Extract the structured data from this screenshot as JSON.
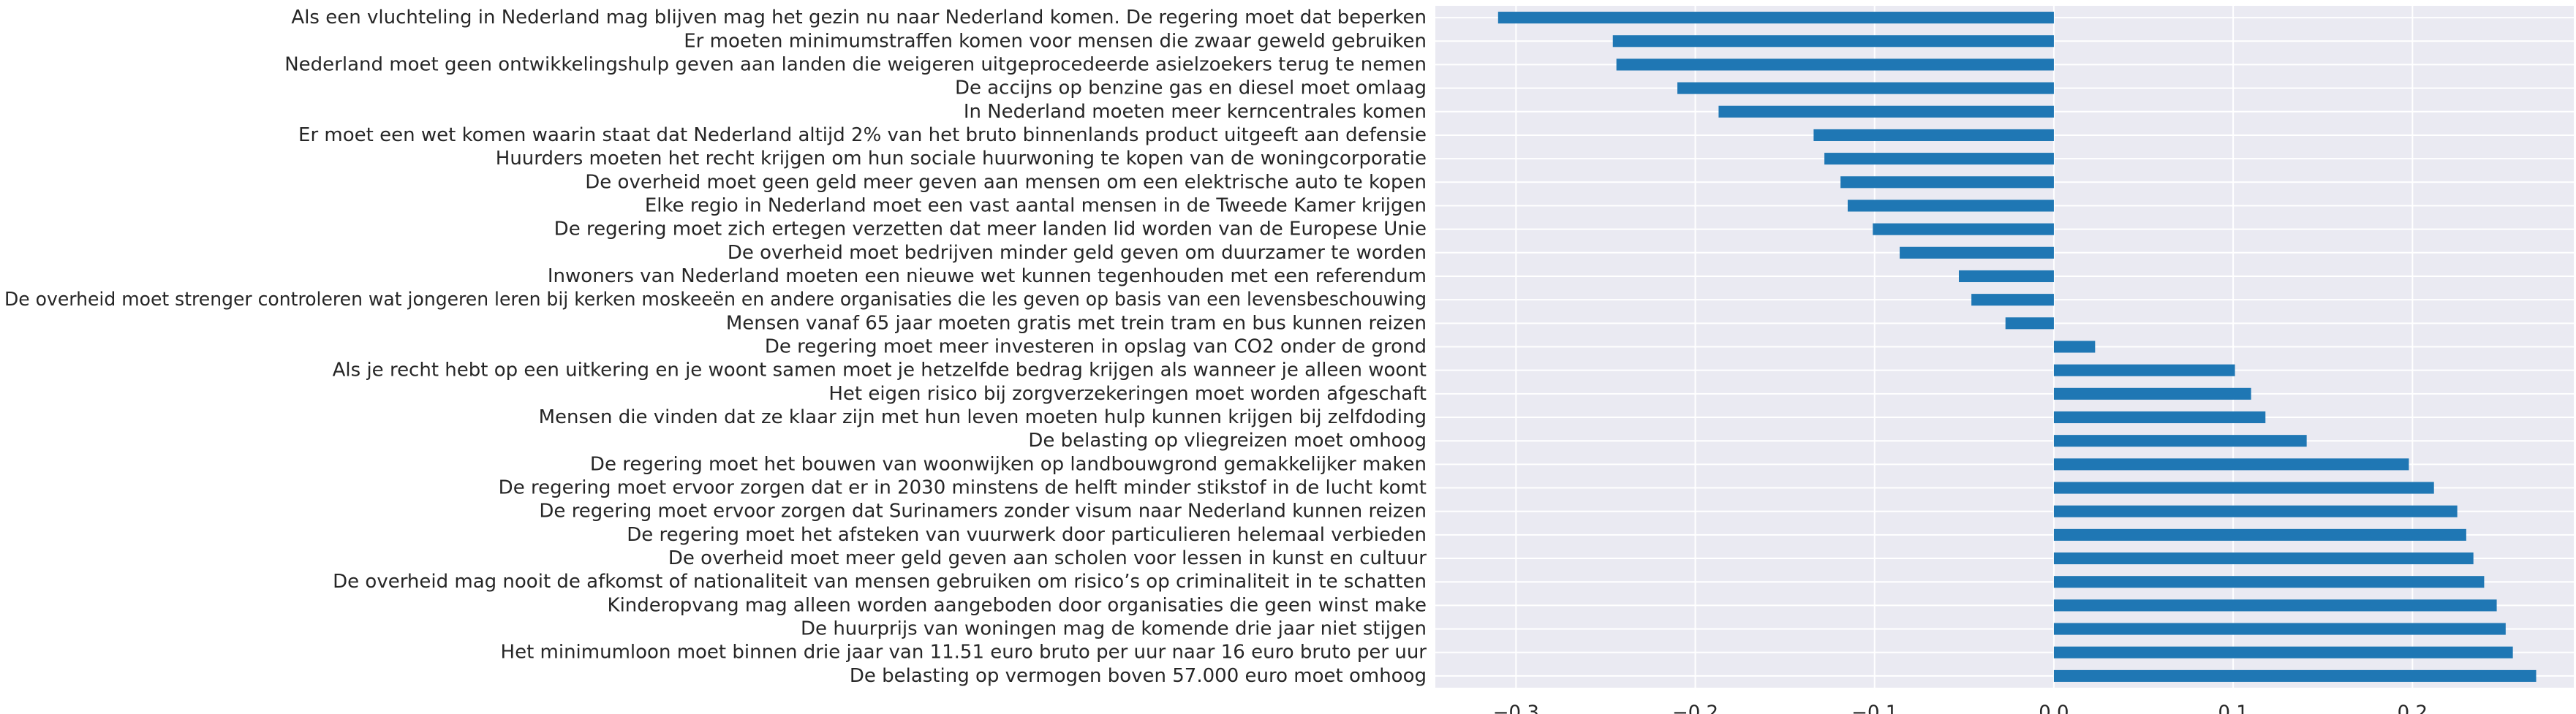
{
  "chart_data": {
    "type": "bar",
    "orientation": "horizontal",
    "bar_color": "#1f77b4",
    "background_color": "#eaeaf2",
    "grid_color": "#ffffff",
    "grid": true,
    "xlim": [
      -0.345,
      0.29
    ],
    "xticks": [
      -0.3,
      -0.2,
      -0.1,
      0.0,
      0.1,
      0.2
    ],
    "xtick_labels": [
      "−0.3",
      "−0.2",
      "−0.1",
      "0.0",
      "0.1",
      "0.2"
    ],
    "categories": [
      "Als een vluchteling in Nederland mag blijven mag het gezin nu naar Nederland komen. De regering moet dat beperken",
      "Er moeten minimumstraffen komen voor mensen die zwaar geweld gebruiken",
      "Nederland moet geen ontwikkelingshulp geven aan landen die weigeren uitgeprocedeerde asielzoekers  terug te nemen",
      "De accijns op benzine gas en diesel moet omlaag",
      "In Nederland moeten meer kerncentrales komen",
      "Er moet een wet komen waarin staat dat Nederland altijd 2% van het  bruto binnenlands product  uitgeeft aan defensie",
      "Huurders moeten het recht krijgen om hun sociale huurwoning te kopen van de  woningcorporatie",
      "De overheid moet geen geld meer geven aan mensen om een  elektrische auto  te kopen",
      "Elke regio in Nederland moet een vast aantal mensen in de Tweede Kamer krijgen",
      "De regering moet zich ertegen verzetten dat meer landen lid worden van de Europese Unie",
      "De overheid moet bedrijven minder geld geven om duurzamer te worden",
      "Inwoners van Nederland moeten een nieuwe wet kunnen tegenhouden met een  referendum",
      "De overheid moet strenger controleren wat jongeren leren bij kerken moskeeën en andere organisaties die les geven op basis van een levensbeschouwing",
      "Mensen vanaf 65 jaar moeten gratis met trein tram en bus kunnen reizen",
      "De regering moet meer investeren in opslag van CO2 onder de grond",
      "Als je recht hebt op een uitkering en je woont samen moet je hetzelfde bedrag krijgen als wanneer je alleen woont",
      "Het eigen risico bij zorgverzekeringen moet worden afgeschaft",
      "Mensen die vinden dat ze klaar zijn met hun leven moeten hulp kunnen krijgen bij zelfdoding",
      "De belasting op vliegreizen moet omhoog",
      "De regering moet het bouwen van woonwijken op landbouwgrond gemakkelijker maken",
      "De regering moet ervoor zorgen dat er in 2030 minstens de helft minder  stikstof  in de lucht komt",
      "De regering moet ervoor zorgen dat Surinamers zonder visum  naar Nederland kunnen reizen",
      "De regering moet het afsteken van vuurwerk door particulieren  helemaal verbieden",
      "De overheid moet meer geld geven aan scholen voor lessen in kunst en cultuur",
      "De overheid mag nooit de afkomst of nationaliteit van mensen gebruiken om risico’s op criminaliteit in te schatten",
      "Kinderopvang mag alleen worden aangeboden door organisaties die geen winst make",
      "De huurprijs van woningen mag de komende drie jaar niet stijgen",
      "Het  minimumloon moet binnen drie jaar van 11.51 euro bruto per uur naar 16 euro bruto per uur",
      "De belasting op vermogen boven 57.000 euro moet omhoog"
    ],
    "values": [
      -0.31,
      -0.246,
      -0.244,
      -0.21,
      -0.187,
      -0.134,
      -0.128,
      -0.119,
      -0.115,
      -0.101,
      -0.086,
      -0.053,
      -0.046,
      -0.027,
      0.023,
      0.101,
      0.11,
      0.118,
      0.141,
      0.198,
      0.212,
      0.225,
      0.23,
      0.234,
      0.24,
      0.247,
      0.252,
      0.256,
      0.269
    ]
  }
}
